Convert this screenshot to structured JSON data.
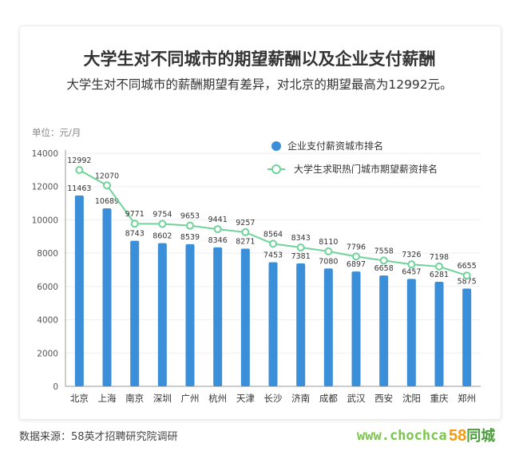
{
  "title": "大学生对不同城市的期望薪酬以及企业支付薪酬",
  "subtitle": "大学生对不同城市的薪酬期望有差异，对北京的期望最高为12992元。",
  "unit_label": "单位：元/月",
  "source": "数据来源：58英才招聘研究院调研",
  "watermark": "www.chochca",
  "brand": {
    "number": "58",
    "text": "同城"
  },
  "colors": {
    "bar": "#3a8fd8",
    "line": "#6fd39a",
    "axis": "#999999",
    "grid": "#eeeeee"
  },
  "chart_data": {
    "type": "bar+line",
    "categories": [
      "北京",
      "上海",
      "南京",
      "深圳",
      "广州",
      "杭州",
      "天津",
      "长沙",
      "济南",
      "成都",
      "武汉",
      "西安",
      "沈阳",
      "重庆",
      "郑州"
    ],
    "series": [
      {
        "name": "企业支付薪资城市排名",
        "type": "bar",
        "values": [
          11463,
          10689,
          8743,
          8602,
          8539,
          8346,
          8271,
          7453,
          7381,
          7080,
          6897,
          6658,
          6457,
          6281,
          5875
        ]
      },
      {
        "name": "大学生求职热门城市期望薪资排名",
        "type": "line",
        "values": [
          12992,
          12070,
          9771,
          9754,
          9653,
          9441,
          9257,
          8564,
          8343,
          8110,
          7796,
          7558,
          7326,
          7198,
          6655
        ]
      }
    ],
    "yticks": [
      0,
      2000,
      4000,
      6000,
      8000,
      10000,
      12000,
      14000
    ],
    "ylim": [
      0,
      14000
    ],
    "grid": true,
    "legend_position": "top-right"
  }
}
